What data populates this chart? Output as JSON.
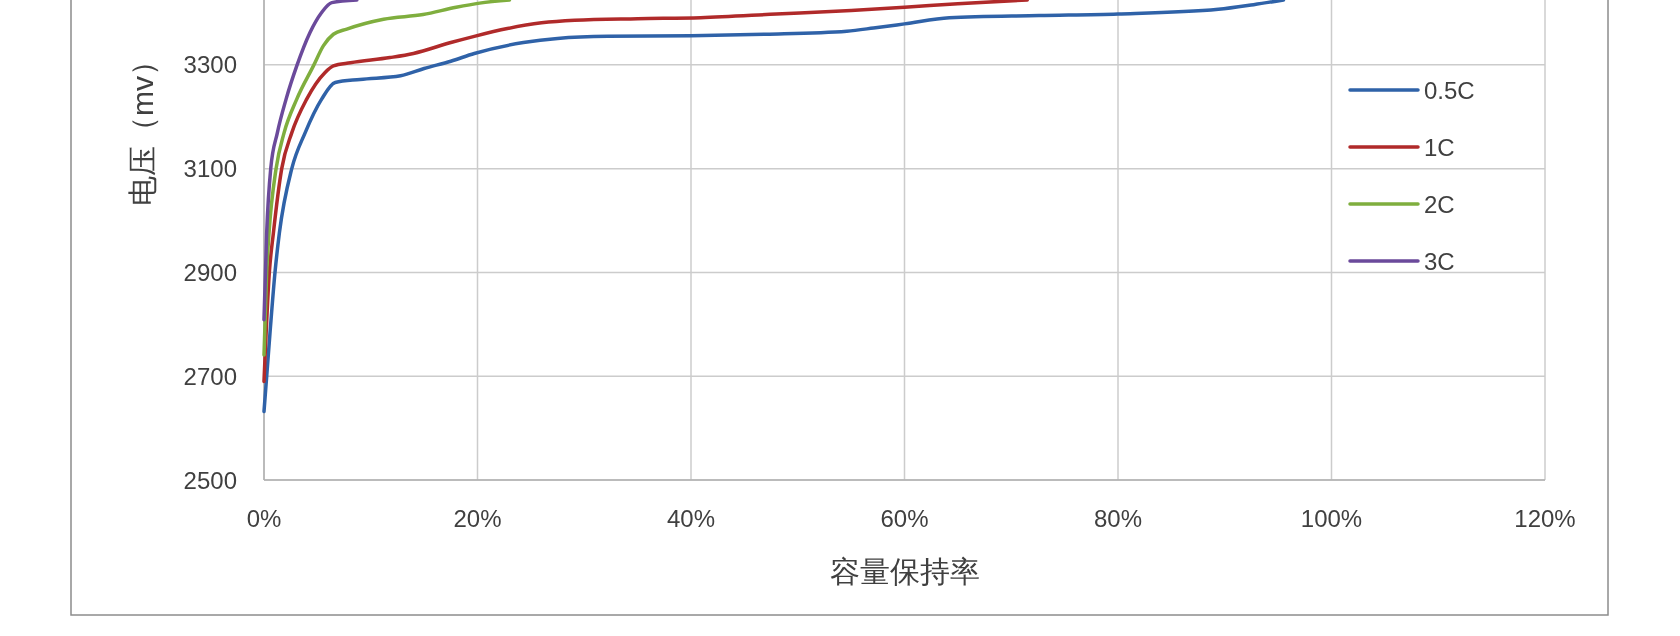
{
  "chart_data": {
    "type": "line",
    "xlabel": "容量保持率",
    "ylabel": "电压（mv）",
    "xlim": [
      0,
      120
    ],
    "xticks": [
      {
        "value": 0,
        "label": "0%"
      },
      {
        "value": 20,
        "label": "20%"
      },
      {
        "value": 40,
        "label": "40%"
      },
      {
        "value": 60,
        "label": "60%"
      },
      {
        "value": 80,
        "label": "80%"
      },
      {
        "value": 100,
        "label": "100%"
      },
      {
        "value": 120,
        "label": "120%"
      }
    ],
    "ylim": [
      2500,
      3425
    ],
    "yticks": [
      2500,
      2700,
      2900,
      3100,
      3300
    ],
    "grid": true,
    "legend": "right",
    "series": [
      {
        "name": "0.5C",
        "color": "#2f62a8",
        "x": [
          0,
          0.56,
          1.03,
          1.44,
          2.6,
          3.85,
          5.4,
          6.67,
          9.0,
          12.8,
          15.0,
          17.5,
          19.7,
          24.3,
          27.5,
          32.2,
          40.0,
          47.0,
          54.6,
          57.1,
          60.0,
          64.2,
          72.6,
          80.0,
          89.4,
          92.7,
          95.5
        ],
        "values": [
          2632,
          2783,
          2900,
          2976,
          3100,
          3169,
          3234,
          3266,
          3272,
          3279,
          3293,
          3307,
          3322,
          3343,
          3351,
          3355,
          3356,
          3359,
          3365,
          3371,
          3379,
          3391,
          3395,
          3398,
          3407,
          3416,
          3425
        ]
      },
      {
        "name": "1C",
        "color": "#b02a2a",
        "x": [
          0,
          0.5,
          0.88,
          1.66,
          2.6,
          4.0,
          5.7,
          6.5,
          8.1,
          11.8,
          14.0,
          17.5,
          19.7,
          22.8,
          26.0,
          29.1,
          35.0,
          40.9,
          48.0,
          55.0,
          60.0,
          65.0,
          71.5
        ],
        "values": [
          2690,
          2900,
          2976,
          3100,
          3169,
          3234,
          3285,
          3298,
          3304,
          3314,
          3322,
          3343,
          3355,
          3370,
          3381,
          3386,
          3389,
          3391,
          3398,
          3405,
          3411,
          3418,
          3425
        ]
      },
      {
        "name": "2C",
        "color": "#7fae3e",
        "x": [
          0,
          0.25,
          0.47,
          1.13,
          1.88,
          3.07,
          4.63,
          5.57,
          6.5,
          7.76,
          11.2,
          14.9,
          18.0,
          20.2,
          23.0
        ],
        "values": [
          2741,
          2900,
          2976,
          3100,
          3169,
          3234,
          3298,
          3337,
          3359,
          3369,
          3388,
          3397,
          3411,
          3419,
          3425
        ]
      },
      {
        "name": "3C",
        "color": "#6b4a9b",
        "x": [
          0,
          0.25,
          0.63,
          1.25,
          2.07,
          3.07,
          4.3,
          5.4,
          6.35,
          8.7
        ],
        "values": [
          2809,
          2976,
          3100,
          3169,
          3234,
          3298,
          3362,
          3401,
          3420,
          3425
        ]
      }
    ]
  }
}
